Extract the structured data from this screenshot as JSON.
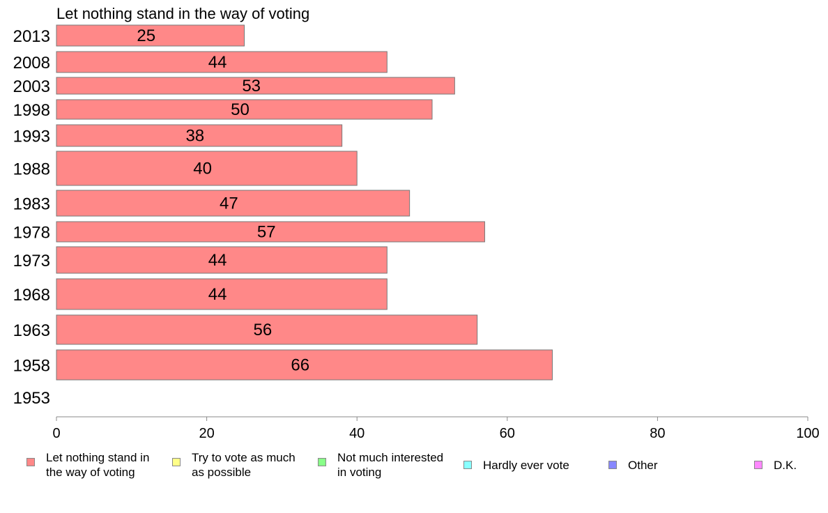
{
  "chart_data": {
    "type": "bar",
    "orientation": "horizontal",
    "title": "Let nothing stand in the way of voting",
    "categories": [
      "2013",
      "2008",
      "2003",
      "1998",
      "1993",
      "1988",
      "1983",
      "1978",
      "1973",
      "1968",
      "1963",
      "1958",
      "1953"
    ],
    "values": [
      25,
      44,
      53,
      50,
      38,
      40,
      47,
      57,
      44,
      44,
      56,
      66,
      null
    ],
    "value_labels": [
      "25",
      "44",
      "53",
      "50",
      "38",
      "40",
      "47",
      "57",
      "44",
      "44",
      "56",
      "66",
      ""
    ],
    "xlim": [
      0,
      100
    ],
    "xticks": [
      "0",
      "20",
      "40",
      "60",
      "80",
      "100"
    ],
    "bar_color": "#ff8888",
    "grid": false,
    "legend_position": "bottom",
    "legend": [
      {
        "label": "Let nothing stand in the way of voting",
        "color": "#ff8888"
      },
      {
        "label": "Try to vote as much as possible",
        "color": "#ffff88"
      },
      {
        "label": "Not much interested in voting",
        "color": "#88ff88"
      },
      {
        "label": "Hardly ever vote",
        "color": "#88ffff"
      },
      {
        "label": "Other",
        "color": "#8888ff"
      },
      {
        "label": "D.K.",
        "color": "#ff88ff"
      }
    ]
  }
}
